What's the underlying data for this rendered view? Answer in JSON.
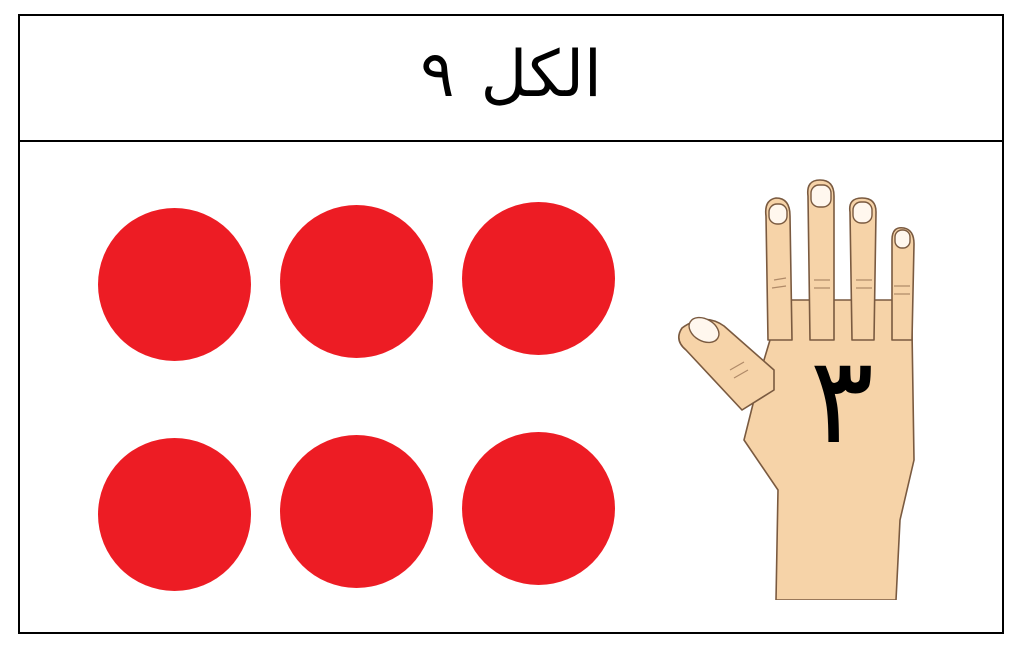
{
  "header": {
    "word": "الكل",
    "total": "٩"
  },
  "counters": {
    "count": 6,
    "color": "#ED1C24"
  },
  "hand": {
    "number": "٣",
    "skin_color": "#F6D3A8"
  }
}
